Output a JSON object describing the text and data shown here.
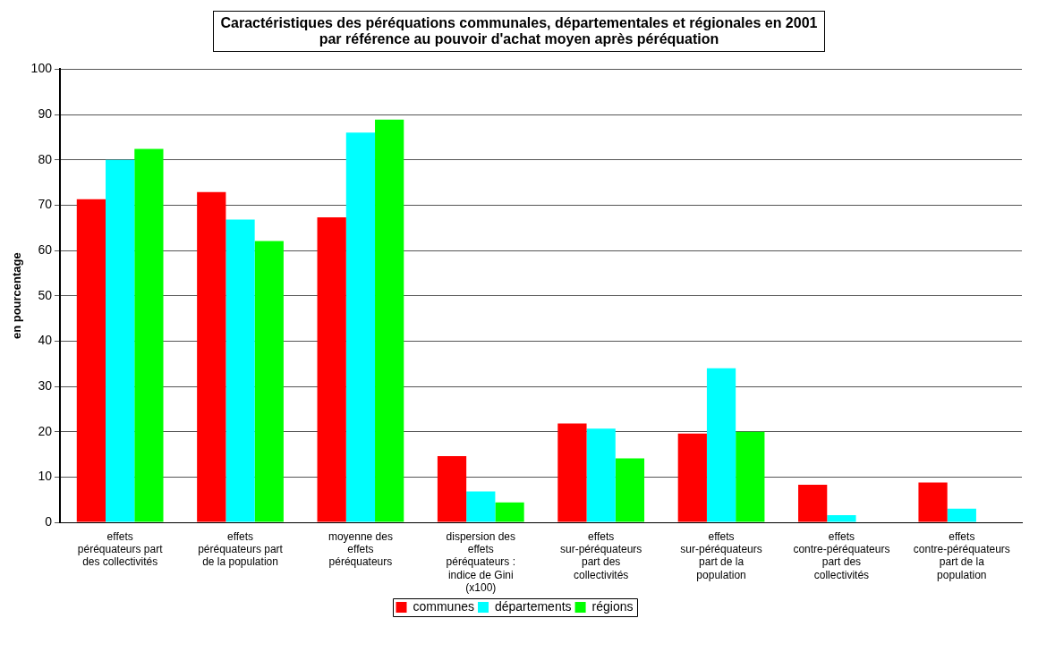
{
  "chart_data": {
    "type": "bar",
    "title": "Caractéristiques des péréquations communales, départementales et régionales en 2001\npar référence au pouvoir d'achat moyen après péréquation",
    "ylabel": "en pourcentage",
    "categories": [
      "effets péréquateurs part des collectivités",
      "effets péréquateurs part de la population",
      "moyenne des effets péréquateurs",
      "dispersion des effets péréquateurs : indice de Gini (x100)",
      "effets sur-péréquateurs part des collectivités",
      "effets sur-péréquateurs part de la population",
      "effets contre-péréquateurs part des collectivités",
      "effets contre-péréquateurs part de la population"
    ],
    "series": [
      {
        "name": "communes",
        "color": "#ff0000",
        "values": [
          71.3,
          72.9,
          67.3,
          14.6,
          21.8,
          19.6,
          8.3,
          8.8
        ]
      },
      {
        "name": "départements",
        "color": "#00ffff",
        "values": [
          80,
          66.8,
          86,
          6.8,
          20.7,
          34,
          1.6,
          3.0
        ]
      },
      {
        "name": "régions",
        "color": "#00ff00",
        "values": [
          82.4,
          62.1,
          88.9,
          4.4,
          14.1,
          20,
          null,
          null
        ]
      }
    ],
    "ylim": [
      0,
      100
    ],
    "yticks": [
      0,
      10,
      20,
      30,
      40,
      50,
      60,
      70,
      80,
      90,
      100
    ],
    "grid": "y",
    "legend": "bottom"
  }
}
